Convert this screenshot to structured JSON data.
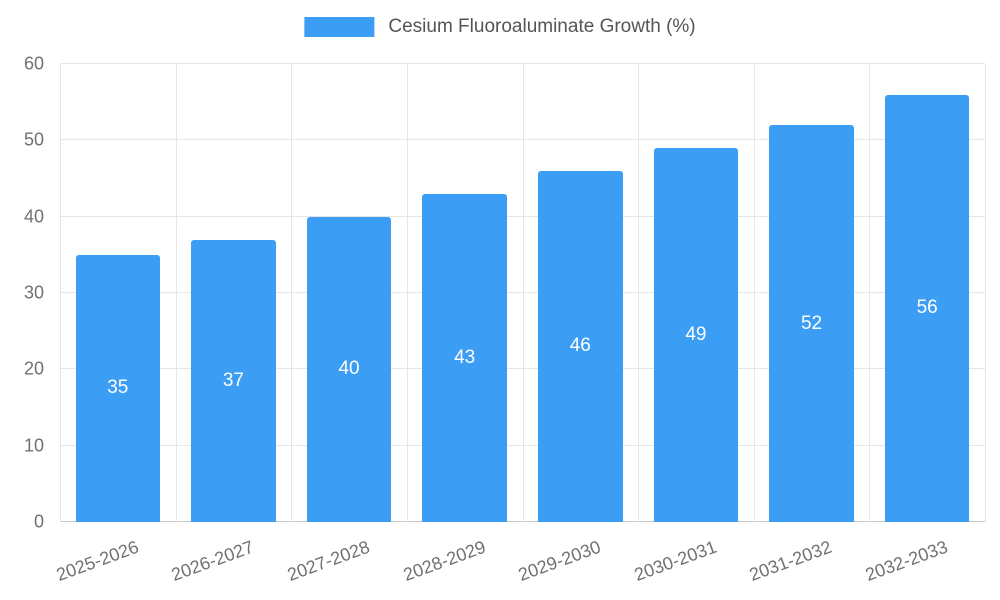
{
  "chart_data": {
    "type": "bar",
    "title": "Cesium Fluoroaluminate Growth (%)",
    "categories": [
      "2025-2026",
      "2026-2027",
      "2027-2028",
      "2028-2029",
      "2029-2030",
      "2030-2031",
      "2031-2032",
      "2032-2033"
    ],
    "values": [
      35,
      37,
      40,
      43,
      46,
      49,
      52,
      56
    ],
    "xlabel": "",
    "ylabel": "",
    "ylim": [
      0,
      60
    ],
    "yticks": [
      0,
      10,
      20,
      30,
      40,
      50,
      60
    ],
    "grid": true,
    "legend_position": "top",
    "bar_color": "#3b9df3",
    "value_label_color": "#ffffff"
  }
}
